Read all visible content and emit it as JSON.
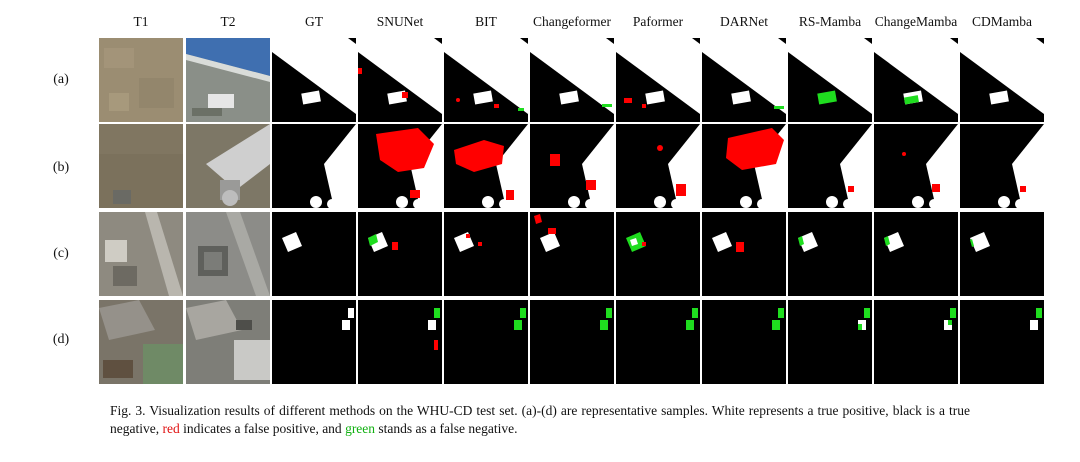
{
  "figure": {
    "columns": [
      "T1",
      "T2",
      "GT",
      "SNUNet",
      "BIT",
      "Changeformer",
      "Paformer",
      "DARNet",
      "RS-Mamba",
      "ChangeMamba",
      "CDMamba"
    ],
    "rows": [
      "(a)",
      "(b)",
      "(c)",
      "(d)"
    ],
    "legend_colors": {
      "true_positive": "#ffffff",
      "true_negative": "#000000",
      "false_positive": "#ff0000",
      "false_negative": "#1fdd1f"
    }
  },
  "caption": {
    "part1": "Fig. 3.  Visualization results of different methods on the WHU-CD test set. (a)-(d) are representative samples. White represents a true positive, black is a true negative,",
    "red_word": "red",
    "part2": "indicates a false positive, and",
    "green_word": "green",
    "part3": "stands as a false negative."
  }
}
